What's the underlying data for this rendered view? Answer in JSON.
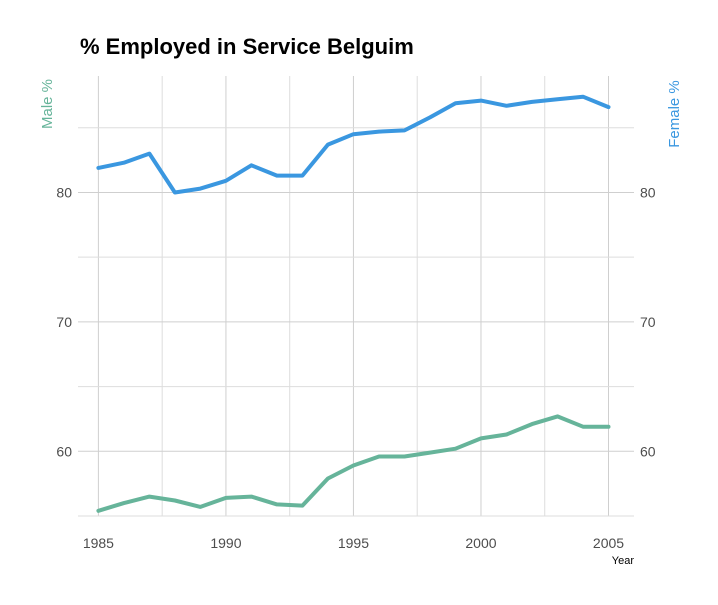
{
  "chart_data": {
    "type": "line",
    "title": "% Employed in Service Belguim",
    "xlabel": "Year",
    "ylabel_left": "Male %",
    "ylabel_right": "Female %",
    "xlim": [
      1984.2,
      2006
    ],
    "ylim": [
      55,
      89
    ],
    "x_ticks": [
      1985,
      1990,
      1995,
      2000,
      2005
    ],
    "y_ticks": [
      60,
      70,
      80
    ],
    "grid": true,
    "series": [
      {
        "name": "Male %",
        "color": "#66b49a",
        "x": [
          1985,
          1986,
          1987,
          1988,
          1989,
          1990,
          1991,
          1992,
          1993,
          1994,
          1995,
          1996,
          1997,
          1998,
          1999,
          2000,
          2001,
          2002,
          2003,
          2004,
          2005
        ],
        "y": [
          55.4,
          56.0,
          56.5,
          56.2,
          55.7,
          56.4,
          56.5,
          55.9,
          55.8,
          57.9,
          58.9,
          59.6,
          59.6,
          59.9,
          60.2,
          61.0,
          61.3,
          62.1,
          62.7,
          61.9,
          61.9
        ]
      },
      {
        "name": "Female %",
        "color": "#3a97e0",
        "x": [
          1985,
          1986,
          1987,
          1988,
          1989,
          1990,
          1991,
          1992,
          1993,
          1994,
          1995,
          1996,
          1997,
          1998,
          1999,
          2000,
          2001,
          2002,
          2003,
          2004,
          2005
        ],
        "y": [
          81.9,
          82.3,
          83.0,
          80.0,
          80.3,
          80.9,
          82.1,
          81.3,
          81.3,
          83.7,
          84.5,
          84.7,
          84.8,
          85.8,
          86.9,
          87.1,
          86.7,
          87.0,
          87.2,
          87.4,
          86.6
        ]
      }
    ]
  }
}
